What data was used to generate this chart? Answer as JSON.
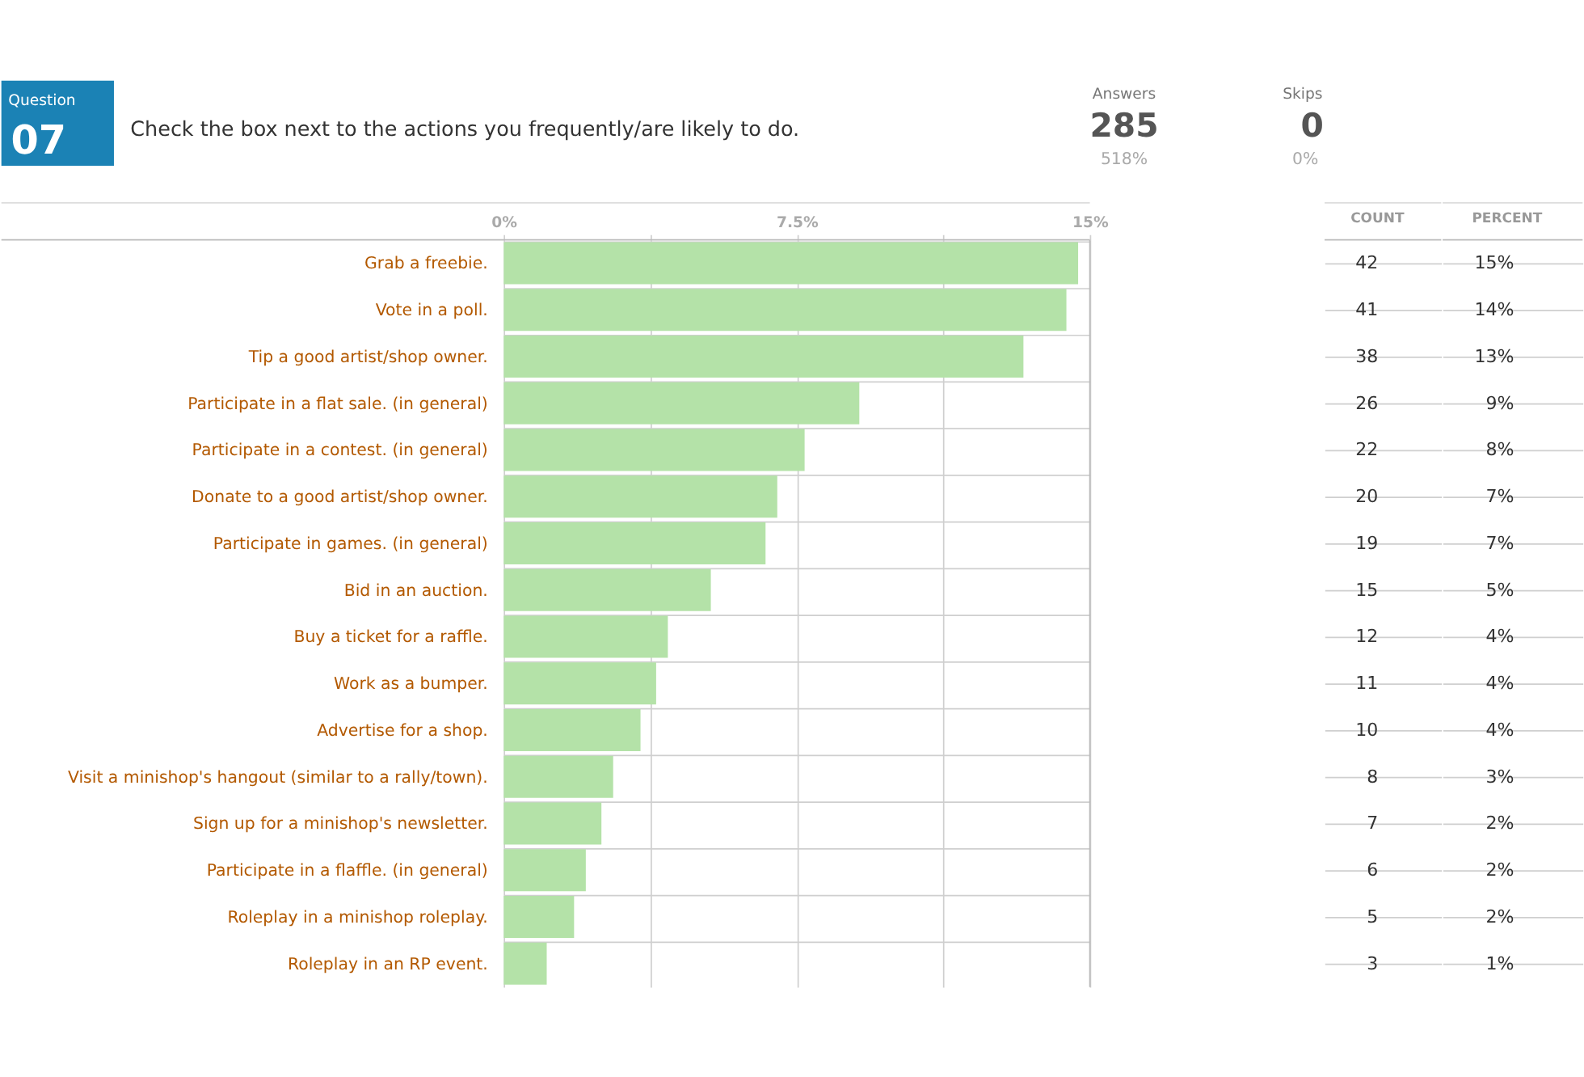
{
  "chart_data": [
    {
      "type": "bar",
      "orientation": "horizontal",
      "title": "Check the box next to the actions you frequently/are likely to do.",
      "categories": [
        "Grab a freebie.",
        "Vote in a poll.",
        "Tip a good artist/shop owner.",
        "Participate in a flat sale. (in general)",
        "Participate in a contest. (in general)",
        "Donate to a good artist/shop owner.",
        "Participate in games. (in general)",
        "Bid in an auction.",
        "Buy a ticket for a raffle.",
        "Work as a bumper.",
        "Advertise for a shop.",
        "Visit a minishop's hangout (similar to a rally/town).",
        "Sign up for a minishop's newsletter.",
        "Participate in a flaffle. (in general)",
        "Roleplay in a minishop roleplay.",
        "Roleplay in an RP event."
      ],
      "series": [
        {
          "type": "bar",
          "color": "#b4e2a8",
          "values": [
            14.7,
            14.4,
            13.3,
            9.1,
            7.7,
            7.0,
            6.7,
            5.3,
            4.2,
            3.9,
            3.5,
            2.8,
            2.5,
            2.1,
            1.8,
            1.1
          ]
        }
      ],
      "xlim": [
        0,
        15
      ],
      "xticks": [
        {
          "value": 0,
          "label": "0%"
        },
        {
          "value": 3.75,
          "label": null
        },
        {
          "value": 7.5,
          "label": "7.5%"
        },
        {
          "value": 11.25,
          "label": null
        },
        {
          "value": 15,
          "label": "15%"
        }
      ],
      "grid": true,
      "annotations": [
        "Question",
        "07",
        "Answers",
        "285",
        "518%",
        "Skips",
        "0",
        "0%"
      ]
    },
    {
      "type": "other",
      "title": "COUNT",
      "values": [
        42,
        41,
        38,
        26,
        22,
        20,
        19,
        15,
        12,
        11,
        10,
        8,
        7,
        6,
        5,
        3
      ],
      "data_labels": true
    },
    {
      "type": "other",
      "title": "PERCENT",
      "values": [
        15,
        14,
        13,
        9,
        8,
        7,
        7,
        5,
        4,
        4,
        4,
        3,
        2,
        2,
        2,
        1
      ],
      "value_labels": [
        "15%",
        "14%",
        "13%",
        "9%",
        "8%",
        "7%",
        "7%",
        "5%",
        "4%",
        "4%",
        "4%",
        "3%",
        "2%",
        "2%",
        "2%",
        "1%"
      ]
    }
  ]
}
